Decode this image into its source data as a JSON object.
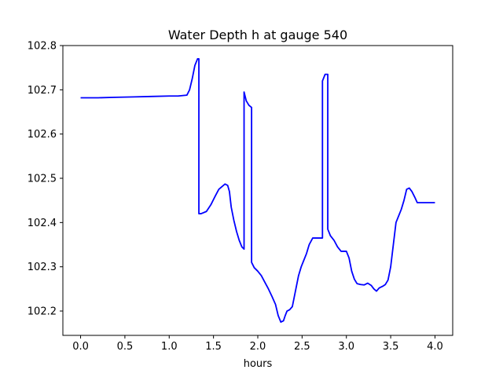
{
  "chart_data": {
    "type": "line",
    "title": "Water Depth h at gauge 540",
    "xlabel": "hours",
    "ylabel": "",
    "xlim": [
      -0.2,
      4.2
    ],
    "ylim": [
      102.145,
      102.8
    ],
    "xticks": [
      0.0,
      0.5,
      1.0,
      1.5,
      2.0,
      2.5,
      3.0,
      3.5,
      4.0
    ],
    "xtick_labels": [
      "0.0",
      "0.5",
      "1.0",
      "1.5",
      "2.0",
      "2.5",
      "3.0",
      "3.5",
      "4.0"
    ],
    "yticks": [
      102.2,
      102.3,
      102.4,
      102.5,
      102.6,
      102.7,
      102.8
    ],
    "ytick_labels": [
      "102.2",
      "102.3",
      "102.4",
      "102.5",
      "102.6",
      "102.7",
      "102.8"
    ],
    "grid": false,
    "legend": "none",
    "series": [
      {
        "color": "#0000ff",
        "x": [
          0.0,
          0.2,
          0.4,
          0.6,
          0.8,
          1.0,
          1.1,
          1.2,
          1.23,
          1.26,
          1.29,
          1.32,
          1.335,
          1.335,
          1.36,
          1.42,
          1.47,
          1.52,
          1.56,
          1.6,
          1.63,
          1.66,
          1.68,
          1.7,
          1.73,
          1.76,
          1.79,
          1.82,
          1.845,
          1.845,
          1.87,
          1.9,
          1.93,
          1.93,
          1.96,
          2.0,
          2.04,
          2.08,
          2.12,
          2.16,
          2.2,
          2.23,
          2.26,
          2.29,
          2.31,
          2.33,
          2.36,
          2.39,
          2.41,
          2.43,
          2.46,
          2.49,
          2.52,
          2.55,
          2.58,
          2.62,
          2.66,
          2.7,
          2.73,
          2.73,
          2.76,
          2.78,
          2.79,
          2.79,
          2.82,
          2.86,
          2.9,
          2.94,
          2.97,
          3.0,
          3.03,
          3.06,
          3.09,
          3.12,
          3.16,
          3.2,
          3.24,
          3.28,
          3.31,
          3.34,
          3.37,
          3.41,
          3.44,
          3.47,
          3.5,
          3.53,
          3.56,
          3.59,
          3.62,
          3.65,
          3.68,
          3.71,
          3.74,
          3.77,
          3.8,
          3.83,
          3.86,
          3.9,
          3.94,
          3.97,
          4.0
        ],
        "y": [
          102.682,
          102.682,
          102.683,
          102.684,
          102.685,
          102.686,
          102.686,
          102.688,
          102.7,
          102.725,
          102.755,
          102.77,
          102.77,
          102.42,
          102.42,
          102.425,
          102.44,
          102.46,
          102.475,
          102.482,
          102.487,
          102.484,
          102.47,
          102.435,
          102.405,
          102.38,
          102.36,
          102.345,
          102.34,
          102.695,
          102.675,
          102.665,
          102.66,
          102.31,
          102.298,
          102.29,
          102.28,
          102.265,
          102.25,
          102.233,
          102.215,
          102.19,
          102.175,
          102.178,
          102.19,
          102.2,
          102.203,
          102.21,
          102.23,
          102.25,
          102.28,
          102.3,
          102.315,
          102.33,
          102.35,
          102.365,
          102.365,
          102.365,
          102.365,
          102.72,
          102.735,
          102.735,
          102.735,
          102.385,
          102.37,
          102.36,
          102.345,
          102.335,
          102.335,
          102.335,
          102.32,
          102.29,
          102.272,
          102.262,
          102.26,
          102.259,
          102.263,
          102.258,
          102.25,
          102.245,
          102.252,
          102.256,
          102.26,
          102.27,
          102.3,
          102.35,
          102.4,
          102.415,
          102.43,
          102.45,
          102.475,
          102.478,
          102.47,
          102.458,
          102.445,
          102.445,
          102.445,
          102.445,
          102.445,
          102.445,
          102.445
        ]
      }
    ]
  }
}
